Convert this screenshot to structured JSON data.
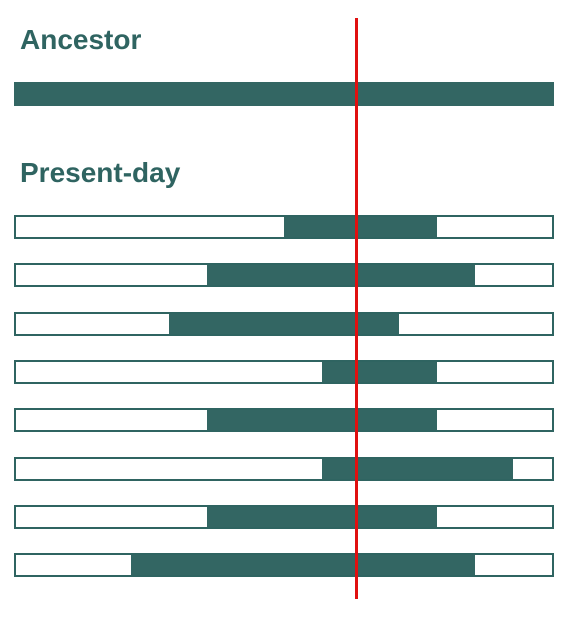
{
  "headings": {
    "ancestor": "Ancestor",
    "present_day": "Present-day"
  },
  "colors": {
    "segment": "#336663",
    "text": "#2f6461",
    "marker": "#e01010"
  },
  "ancestor": {
    "start": 0.0,
    "end": 1.0
  },
  "present_day": [
    {
      "start": 0.5,
      "end": 0.785
    },
    {
      "start": 0.357,
      "end": 0.857
    },
    {
      "start": 0.285,
      "end": 0.714
    },
    {
      "start": 0.571,
      "end": 0.785
    },
    {
      "start": 0.357,
      "end": 0.785
    },
    {
      "start": 0.571,
      "end": 0.928
    },
    {
      "start": 0.357,
      "end": 0.785
    },
    {
      "start": 0.214,
      "end": 0.857
    }
  ],
  "marker_position": 0.635
}
